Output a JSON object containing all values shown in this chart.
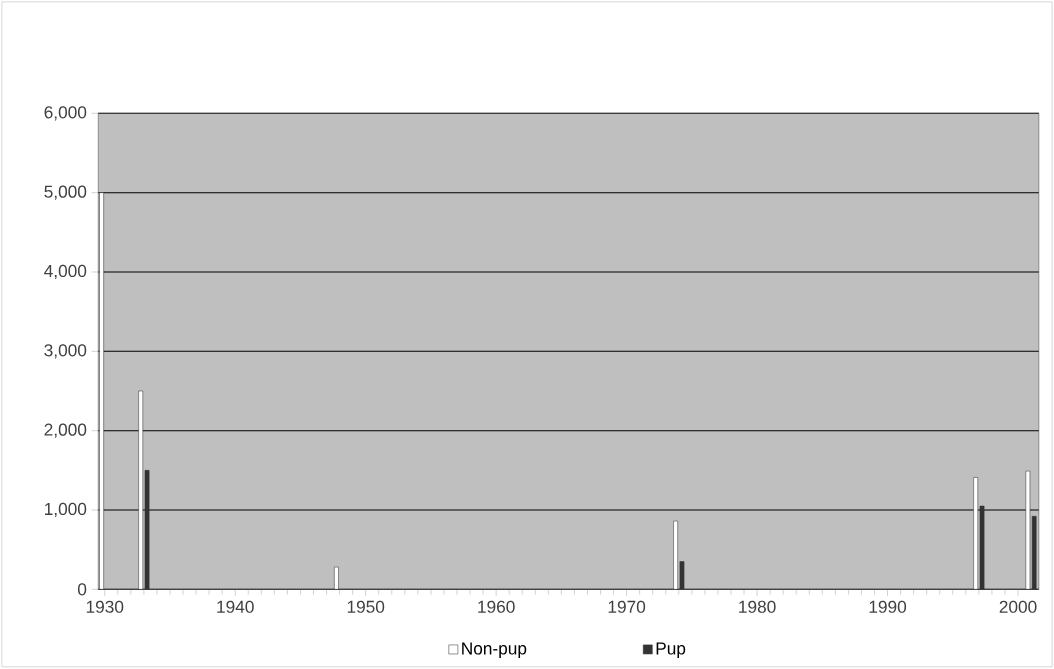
{
  "chart_data": {
    "type": "bar",
    "x": [
      1930,
      1933,
      1948,
      1974,
      1997,
      2001
    ],
    "series": [
      {
        "name": "Non-pup",
        "color": "#ffffff",
        "values": [
          5000,
          2500,
          280,
          860,
          1410,
          1490
        ]
      },
      {
        "name": "Pup",
        "color": "#333333",
        "values": [
          null,
          1500,
          null,
          350,
          1050,
          920
        ]
      }
    ],
    "xlim": [
      1929.5,
      2001.6
    ],
    "xticks": [
      1930,
      1940,
      1950,
      1960,
      1970,
      1980,
      1990,
      2000
    ],
    "ylim": [
      0,
      6000
    ],
    "yticks": [
      0,
      {
        "value": 1000,
        "label": "1,000"
      },
      {
        "value": 2000,
        "label": "2,000"
      },
      {
        "value": 3000,
        "label": "3,000"
      },
      {
        "value": 4000,
        "label": "4,000"
      },
      {
        "value": 5000,
        "label": "5,000"
      },
      {
        "value": 6000,
        "label": "6,000"
      }
    ],
    "grid": "y",
    "legend": "bottom"
  }
}
